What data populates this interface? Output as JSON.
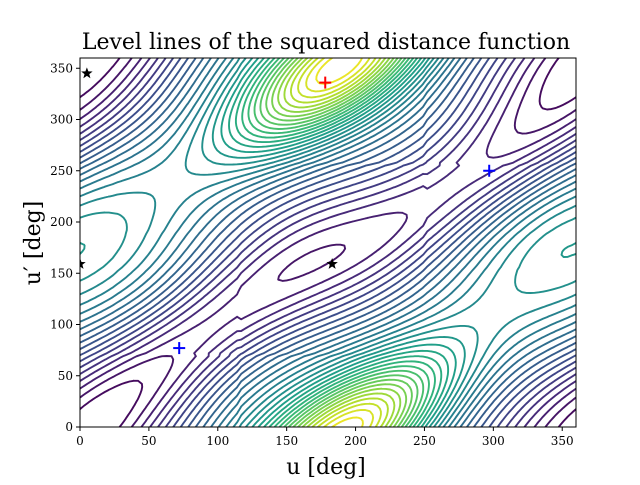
{
  "chart_data": {
    "type": "contour",
    "title": "Level lines of the squared distance function",
    "xlabel": "u [deg]",
    "ylabel": "u′ [deg]",
    "xlim": [
      0,
      360
    ],
    "ylim": [
      0,
      360
    ],
    "x_ticks": [
      0,
      50,
      100,
      150,
      200,
      250,
      300,
      350
    ],
    "y_ticks": [
      0,
      50,
      100,
      150,
      200,
      250,
      300,
      350
    ],
    "grid": false,
    "colormap": [
      "#440154",
      "#482878",
      "#3e4989",
      "#31688e",
      "#26828e",
      "#1f9e89",
      "#35b779",
      "#6ece58",
      "#b5de2b",
      "#fde725"
    ],
    "minima": [
      {
        "u": 72,
        "u_prime": 77,
        "color": "#0000ff"
      },
      {
        "u": 297,
        "u_prime": 250,
        "color": "#0000ff"
      }
    ],
    "maximum": {
      "u": 178,
      "u_prime": 336,
      "color": "#ff0000"
    },
    "saddles": [
      {
        "u": 5,
        "u_prime": 345
      },
      {
        "u": 0,
        "u_prime": 159
      },
      {
        "u": 183,
        "u_prime": 159
      }
    ]
  }
}
